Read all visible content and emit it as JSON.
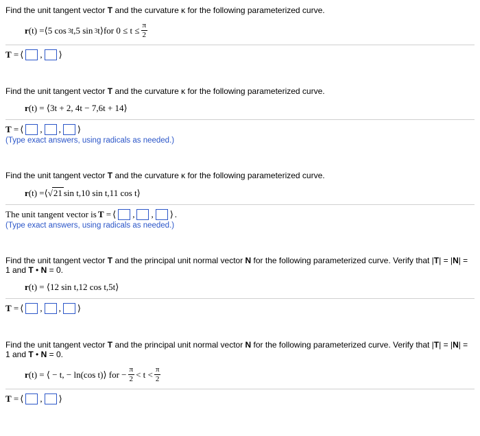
{
  "problems": [
    {
      "prompt": "Find the unit tangent vector T and the curvature κ for the following parameterized curve.",
      "eq_prefix": "r(t) = ",
      "eq_body_html": "<span class='angle'>⟨</span>5 cos<sup>&nbsp;3</sup>t,5 sin<sup>&nbsp;3</sup>t<span class='angle'>⟩</span> for 0 ≤ t ≤ ",
      "eq_frac_num": "π",
      "eq_frac_den": "2",
      "answer_label": "T = ",
      "box_count": 2,
      "brackets": true,
      "hint": ""
    },
    {
      "prompt": "Find the unit tangent vector T and the curvature κ for the following parameterized curve.",
      "eq_prefix": "r(t) = ",
      "eq_body_html": "⟨3t + 2, 4t − 7,6t + 14⟩",
      "answer_label": "T = ",
      "box_count": 3,
      "brackets": true,
      "hint": "(Type exact answers, using radicals as needed.)"
    },
    {
      "prompt": "Find the unit tangent vector T and the curvature κ for the following parameterized curve.",
      "eq_prefix": "r(t) = ",
      "eq_body_html": "<span class='angle'>⟨</span><span class='sqrt'>√<span class='rad'>21</span></span> sin t,10 sin t,11 cos t<span class='angle'>⟩</span>",
      "answer_prefix": "The unit tangent vector is ",
      "answer_label": "T = ",
      "box_count": 3,
      "brackets": true,
      "trailing_period": ".",
      "hint": "(Type exact answers, using radicals as needed.)"
    },
    {
      "prompt": "Find the unit tangent vector T and the principal unit normal vector N for the following parameterized curve. Verify that |T| = |N| = 1 and T • N = 0.",
      "eq_prefix": "r(t) = ",
      "eq_body_html": "⟨12 sin t,12 cos t,5t⟩",
      "answer_label": "T = ",
      "box_count": 3,
      "brackets": true,
      "hint": ""
    },
    {
      "prompt": "Find the unit tangent vector T and the principal unit normal vector N for the following parameterized curve. Verify that |T| = |N| = 1 and T • N = 0.",
      "eq_prefix": "r(t) = ",
      "eq_body_html": "⟨ − t, − ln(cos t)⟩ for  − ",
      "eq_frac_num": "π",
      "eq_frac_den": "2",
      "eq_mid": " < t < ",
      "eq_frac2_num": "π",
      "eq_frac2_den": "2",
      "answer_label": "T = ",
      "box_count": 2,
      "brackets": true,
      "hint": ""
    }
  ]
}
